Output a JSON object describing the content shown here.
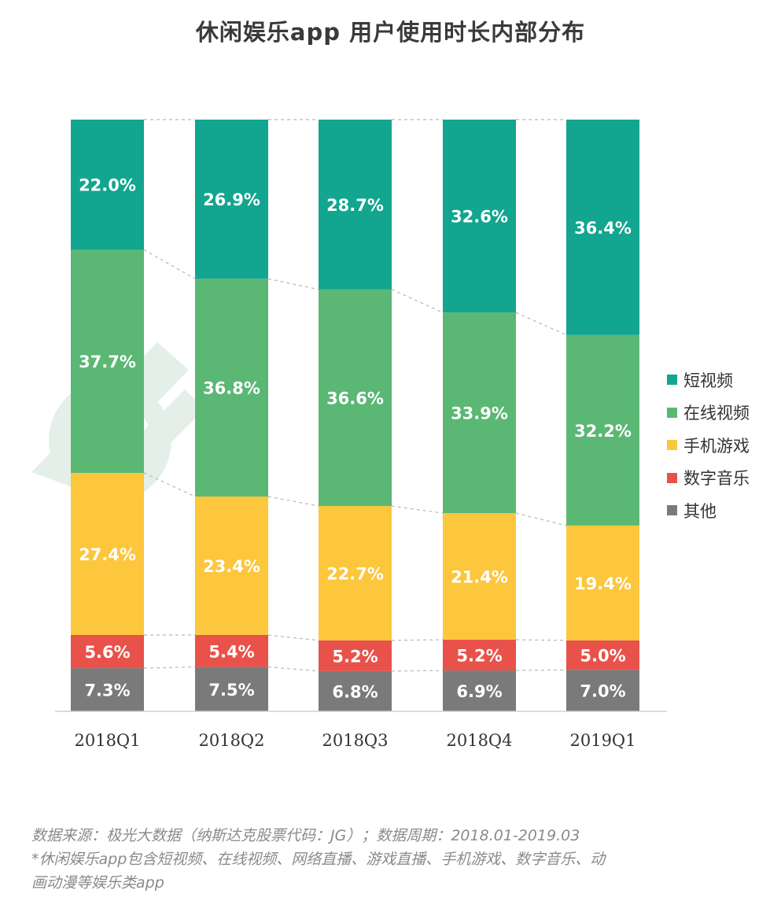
{
  "title": "休闲娱乐app 用户使用时长内部分布",
  "colors": {
    "短视频": "#12a58f",
    "在线视频": "#5bb774",
    "手机游戏": "#fcc63d",
    "数字音乐": "#e8524a",
    "其他": "#7a7a7a"
  },
  "chart_data": {
    "type": "bar",
    "stacked": true,
    "orientation": "vertical",
    "title": "休闲娱乐app 用户使用时长内部分布",
    "categories": [
      "2018Q1",
      "2018Q2",
      "2018Q3",
      "2018Q4",
      "2019Q1"
    ],
    "series": [
      {
        "name": "其他",
        "values": [
          7.3,
          7.5,
          6.8,
          6.9,
          7.0
        ],
        "labels": [
          "7.3%",
          "7.5%",
          "6.8%",
          "6.9%",
          "7.0%"
        ]
      },
      {
        "name": "数字音乐",
        "values": [
          5.6,
          5.4,
          5.2,
          5.2,
          5.0
        ],
        "labels": [
          "5.6%",
          "5.4%",
          "5.2%",
          "5.2%",
          "5.0%"
        ]
      },
      {
        "name": "手机游戏",
        "values": [
          27.4,
          23.4,
          22.7,
          21.4,
          19.4
        ],
        "labels": [
          "27.4%",
          "23.4%",
          "22.7%",
          "21.4%",
          "19.4%"
        ]
      },
      {
        "name": "在线视频",
        "values": [
          37.7,
          36.8,
          36.6,
          33.9,
          32.2
        ],
        "labels": [
          "37.7%",
          "36.8%",
          "36.6%",
          "33.9%",
          "32.2%"
        ]
      },
      {
        "name": "短视频",
        "values": [
          22.0,
          26.9,
          28.7,
          32.6,
          36.4
        ],
        "labels": [
          "22.0%",
          "26.9%",
          "28.7%",
          "32.6%",
          "36.4%"
        ]
      }
    ],
    "legend": [
      "短视频",
      "在线视频",
      "手机游戏",
      "数字音乐",
      "其他"
    ],
    "legend_position": "right",
    "ylim": [
      0,
      100
    ],
    "grid": false,
    "connector_lines": "dashed"
  },
  "footnote": {
    "line1": "数据来源：极光大数据（纳斯达克股票代码：JG）；数据周期：2018.01-2019.03",
    "line2": "*休闲娱乐app包含短视频、在线视频、网络直播、游戏直播、手机游戏、数字音乐、动",
    "line3": "画动漫等娱乐类app"
  }
}
